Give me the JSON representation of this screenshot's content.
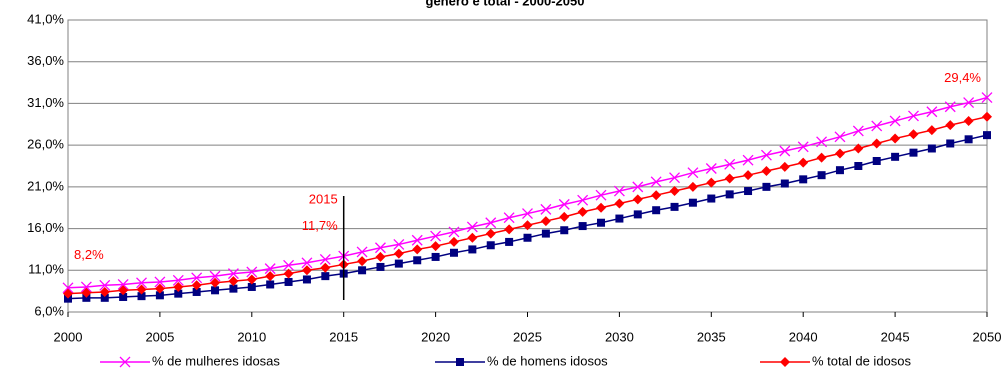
{
  "chart_data": {
    "type": "line",
    "title": "gênero e total - 2000-2050",
    "x": [
      2000,
      2001,
      2002,
      2003,
      2004,
      2005,
      2006,
      2007,
      2008,
      2009,
      2010,
      2011,
      2012,
      2013,
      2014,
      2015,
      2016,
      2017,
      2018,
      2019,
      2020,
      2021,
      2022,
      2023,
      2024,
      2025,
      2026,
      2027,
      2028,
      2029,
      2030,
      2031,
      2032,
      2033,
      2034,
      2035,
      2036,
      2037,
      2038,
      2039,
      2040,
      2041,
      2042,
      2043,
      2044,
      2045,
      2046,
      2047,
      2048,
      2049,
      2050
    ],
    "series": [
      {
        "name": "% de mulheres idosas",
        "color": "#ff00ff",
        "marker": "x",
        "values": [
          8.9,
          9.0,
          9.2,
          9.3,
          9.5,
          9.6,
          9.8,
          10.1,
          10.3,
          10.6,
          10.8,
          11.2,
          11.6,
          11.9,
          12.3,
          12.7,
          13.2,
          13.7,
          14.1,
          14.6,
          15.1,
          15.6,
          16.2,
          16.7,
          17.3,
          17.8,
          18.3,
          18.9,
          19.4,
          20.0,
          20.5,
          21.0,
          21.6,
          22.1,
          22.7,
          23.2,
          23.7,
          24.2,
          24.8,
          25.3,
          25.8,
          26.4,
          27.0,
          27.7,
          28.3,
          28.9,
          29.5,
          30.0,
          30.6,
          31.1,
          31.7
        ]
      },
      {
        "name": "% de homens idosos",
        "color": "#000080",
        "marker": "square",
        "values": [
          7.6,
          7.7,
          7.7,
          7.8,
          7.9,
          8.0,
          8.2,
          8.4,
          8.6,
          8.8,
          9.0,
          9.3,
          9.6,
          9.9,
          10.3,
          10.6,
          11.0,
          11.4,
          11.8,
          12.2,
          12.6,
          13.1,
          13.5,
          14.0,
          14.4,
          14.9,
          15.4,
          15.8,
          16.3,
          16.7,
          17.2,
          17.7,
          18.2,
          18.6,
          19.1,
          19.6,
          20.1,
          20.5,
          21.0,
          21.4,
          21.9,
          22.4,
          23.0,
          23.5,
          24.1,
          24.6,
          25.1,
          25.6,
          26.2,
          26.7,
          27.2
        ]
      },
      {
        "name": "% total de idosos",
        "color": "#ff0000",
        "marker": "diamond",
        "values": [
          8.2,
          8.3,
          8.4,
          8.6,
          8.7,
          8.8,
          9.0,
          9.2,
          9.5,
          9.7,
          9.9,
          10.3,
          10.6,
          11.0,
          11.3,
          11.7,
          12.1,
          12.6,
          13.0,
          13.5,
          13.9,
          14.4,
          14.9,
          15.4,
          15.9,
          16.4,
          16.9,
          17.4,
          18.0,
          18.5,
          19.0,
          19.5,
          20.0,
          20.5,
          21.0,
          21.5,
          22.0,
          22.4,
          22.9,
          23.4,
          23.9,
          24.5,
          25.0,
          25.6,
          26.2,
          26.8,
          27.3,
          27.8,
          28.4,
          28.9,
          29.4
        ],
        "value_labels": [
          "8,2%",
          null,
          null,
          null,
          null,
          null,
          null,
          null,
          null,
          null,
          null,
          null,
          null,
          null,
          null,
          "11,7%",
          null,
          null,
          null,
          null,
          null,
          null,
          null,
          null,
          null,
          null,
          null,
          null,
          null,
          null,
          null,
          null,
          null,
          null,
          null,
          null,
          null,
          null,
          null,
          null,
          null,
          null,
          null,
          null,
          null,
          null,
          null,
          null,
          null,
          null,
          "29,4%"
        ]
      }
    ],
    "annotations": [
      {
        "text": "2015",
        "x": 2015
      }
    ],
    "xlim": [
      2000,
      2050
    ],
    "xticks": [
      2000,
      2005,
      2010,
      2015,
      2020,
      2025,
      2030,
      2035,
      2040,
      2045,
      2050
    ],
    "ylim": [
      6,
      41
    ],
    "yticks": [
      {
        "value": 6,
        "label": "6,0%"
      },
      {
        "value": 11,
        "label": "11,0%"
      },
      {
        "value": 16,
        "label": "16,0%"
      },
      {
        "value": 21,
        "label": "21,0%"
      },
      {
        "value": 26,
        "label": "26,0%"
      },
      {
        "value": 31,
        "label": "31,0%"
      },
      {
        "value": 36,
        "label": "36,0%"
      },
      {
        "value": 41,
        "label": "41,0%"
      }
    ],
    "grid": true,
    "legend": "bottom"
  }
}
